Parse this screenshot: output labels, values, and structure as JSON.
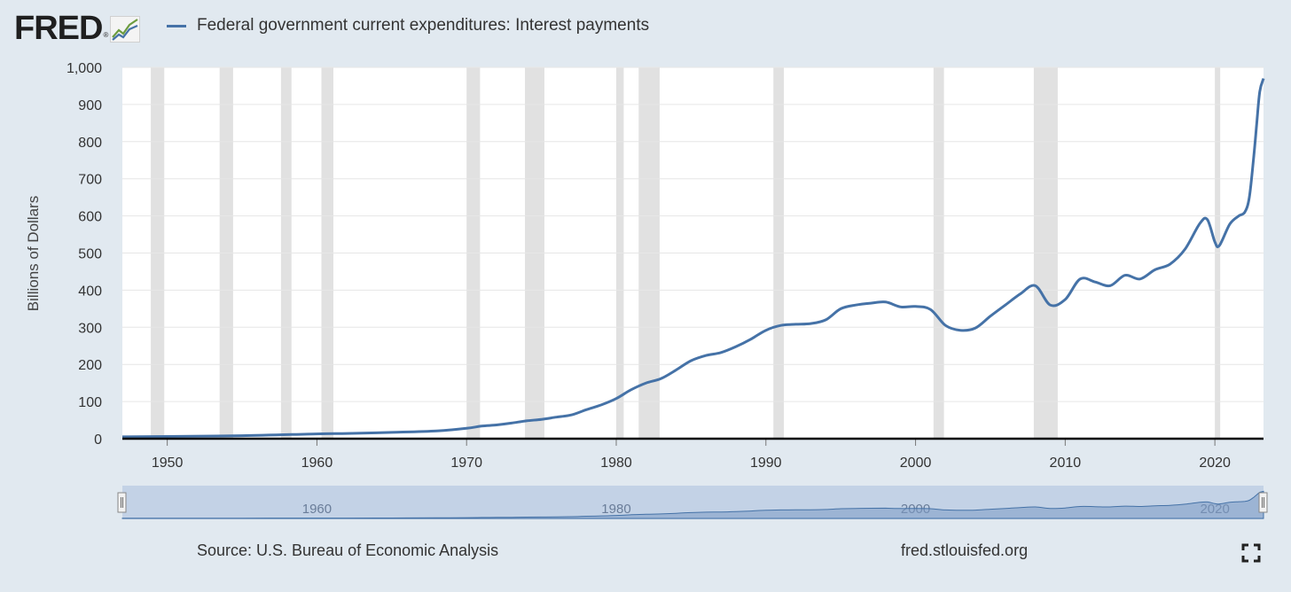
{
  "header": {
    "logo_text": "FRED",
    "logo_mark": "®",
    "logo_icon": "line-chart-icon"
  },
  "footer": {
    "source": "Source: U.S. Bureau of Economic Analysis",
    "site": "fred.stlouisfed.org",
    "fullscreen_icon": "fullscreen-icon"
  },
  "colors": {
    "series": "#4572a7",
    "recession": "#e1e1e1",
    "background": "#e1e9f0",
    "plot": "#ffffff",
    "navigator": "#c3d2e6"
  },
  "chart_data": {
    "type": "line",
    "title": "",
    "xlabel": "",
    "ylabel": "Billions of Dollars",
    "xlim": [
      1947,
      2023.25
    ],
    "ylim": [
      0,
      1000
    ],
    "yticks": [
      0,
      100,
      200,
      300,
      400,
      500,
      600,
      700,
      800,
      900,
      1000
    ],
    "ytick_labels": [
      "0",
      "100",
      "200",
      "300",
      "400",
      "500",
      "600",
      "700",
      "800",
      "900",
      "1,000"
    ],
    "xticks": [
      1950,
      1960,
      1970,
      1980,
      1990,
      2000,
      2010,
      2020
    ],
    "navigator_ticks": [
      1960,
      1980,
      2000,
      2020
    ],
    "grid": true,
    "legend_position": "top-left",
    "recessions": [
      [
        1948.9,
        1949.8
      ],
      [
        1953.5,
        1954.4
      ],
      [
        1957.6,
        1958.3
      ],
      [
        1960.3,
        1961.1
      ],
      [
        1970.0,
        1970.9
      ],
      [
        1973.9,
        1975.2
      ],
      [
        1980.0,
        1980.5
      ],
      [
        1981.5,
        1982.9
      ],
      [
        1990.5,
        1991.2
      ],
      [
        2001.2,
        2001.9
      ],
      [
        2007.9,
        2009.5
      ],
      [
        2020.0,
        2020.3
      ]
    ],
    "series": [
      {
        "name": "Federal government current expenditures: Interest payments",
        "x": [
          1947,
          1950,
          1955,
          1960,
          1962,
          1965,
          1968,
          1970,
          1971,
          1972,
          1973,
          1974,
          1975,
          1976,
          1977,
          1978,
          1979,
          1980,
          1981,
          1982,
          1983,
          1984,
          1985,
          1986,
          1987,
          1988,
          1989,
          1990,
          1991,
          1992,
          1993,
          1994,
          1995,
          1996,
          1997,
          1998,
          1999,
          2000,
          2001,
          2002,
          2003,
          2004,
          2005,
          2006,
          2007,
          2008,
          2009,
          2010,
          2011,
          2012,
          2013,
          2014,
          2015,
          2016,
          2017,
          2018,
          2019,
          2019.5,
          2020,
          2020.3,
          2021,
          2021.6,
          2022,
          2022.3,
          2022.6,
          2022.8,
          2023,
          2023.25
        ],
        "values": [
          5,
          6,
          8,
          13,
          14,
          17,
          21,
          28,
          34,
          37,
          42,
          48,
          52,
          58,
          64,
          78,
          91,
          108,
          132,
          150,
          162,
          185,
          210,
          224,
          232,
          248,
          268,
          292,
          305,
          308,
          310,
          320,
          350,
          360,
          365,
          368,
          355,
          356,
          348,
          305,
          292,
          298,
          330,
          360,
          390,
          412,
          360,
          375,
          430,
          422,
          412,
          440,
          430,
          455,
          470,
          510,
          580,
          590,
          530,
          520,
          578,
          600,
          610,
          650,
          760,
          850,
          935,
          970
        ]
      }
    ]
  }
}
